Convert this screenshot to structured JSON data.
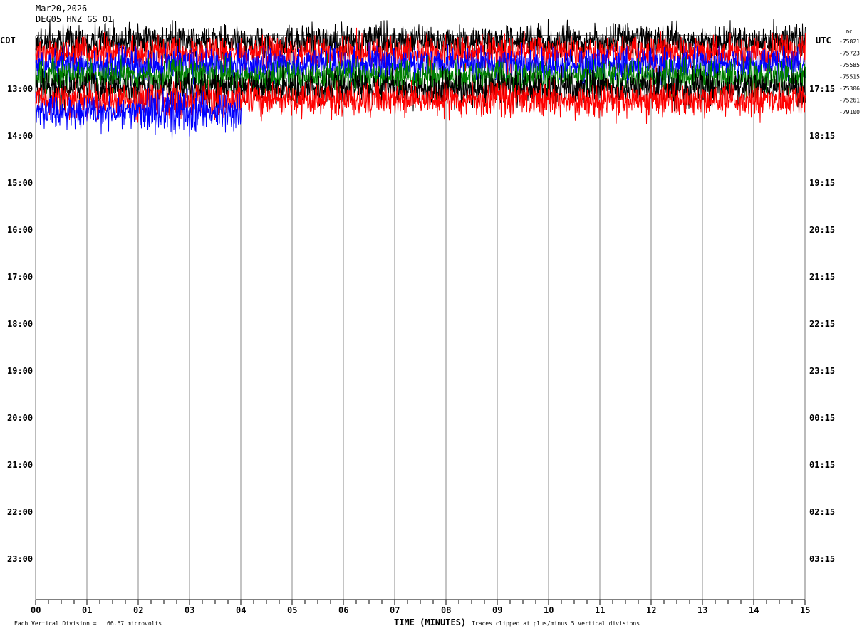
{
  "header": {
    "date": "Mar20,2026",
    "station": "DEC05 HNZ GS 01"
  },
  "chart_data": {
    "type": "line",
    "title": "Mar20,2026 DEC05 HNZ GS 01",
    "left_timezone": "CDT",
    "right_timezone": "UTC",
    "xlabel": "TIME (MINUTES)",
    "xlim": [
      0,
      15
    ],
    "x_ticks": [
      "00",
      "01",
      "02",
      "03",
      "04",
      "05",
      "06",
      "07",
      "08",
      "09",
      "10",
      "11",
      "12",
      "13",
      "14",
      "15"
    ],
    "left_hour_labels": [
      "13:00",
      "14:00",
      "15:00",
      "16:00",
      "17:00",
      "18:00",
      "19:00",
      "20:00",
      "21:00",
      "22:00",
      "23:00"
    ],
    "right_hour_labels": [
      "17:15",
      "18:15",
      "19:15",
      "20:15",
      "21:15",
      "22:15",
      "23:15",
      "00:15",
      "01:15",
      "02:15",
      "03:15"
    ],
    "dc_header": "DC",
    "dc_offsets": [
      "-75821",
      "-75723",
      "-75585",
      "-75515",
      "-75306",
      "-75261",
      "-79100"
    ],
    "traces": [
      {
        "row_start": "12:45",
        "color": "#000000",
        "end_minute": 15
      },
      {
        "row_start": "12:45+15",
        "color": "#ff0000",
        "end_minute": 15
      },
      {
        "row_start": "12:45+30",
        "color": "#0000ff",
        "end_minute": 15
      },
      {
        "row_start": "12:45+45",
        "color": "#008000",
        "end_minute": 15
      },
      {
        "row_start": "13:00+15",
        "color": "#000000",
        "end_minute": 15
      },
      {
        "row_start": "13:00+30",
        "color": "#ff0000",
        "end_minute": 15
      },
      {
        "row_start": "13:00+45",
        "color": "#0000ff",
        "end_minute": 4
      }
    ],
    "footer_left": "Each Vertical Division =   66.67 microvolts",
    "footer_right": "Traces clipped at plus/minus 5 vertical divisions"
  }
}
